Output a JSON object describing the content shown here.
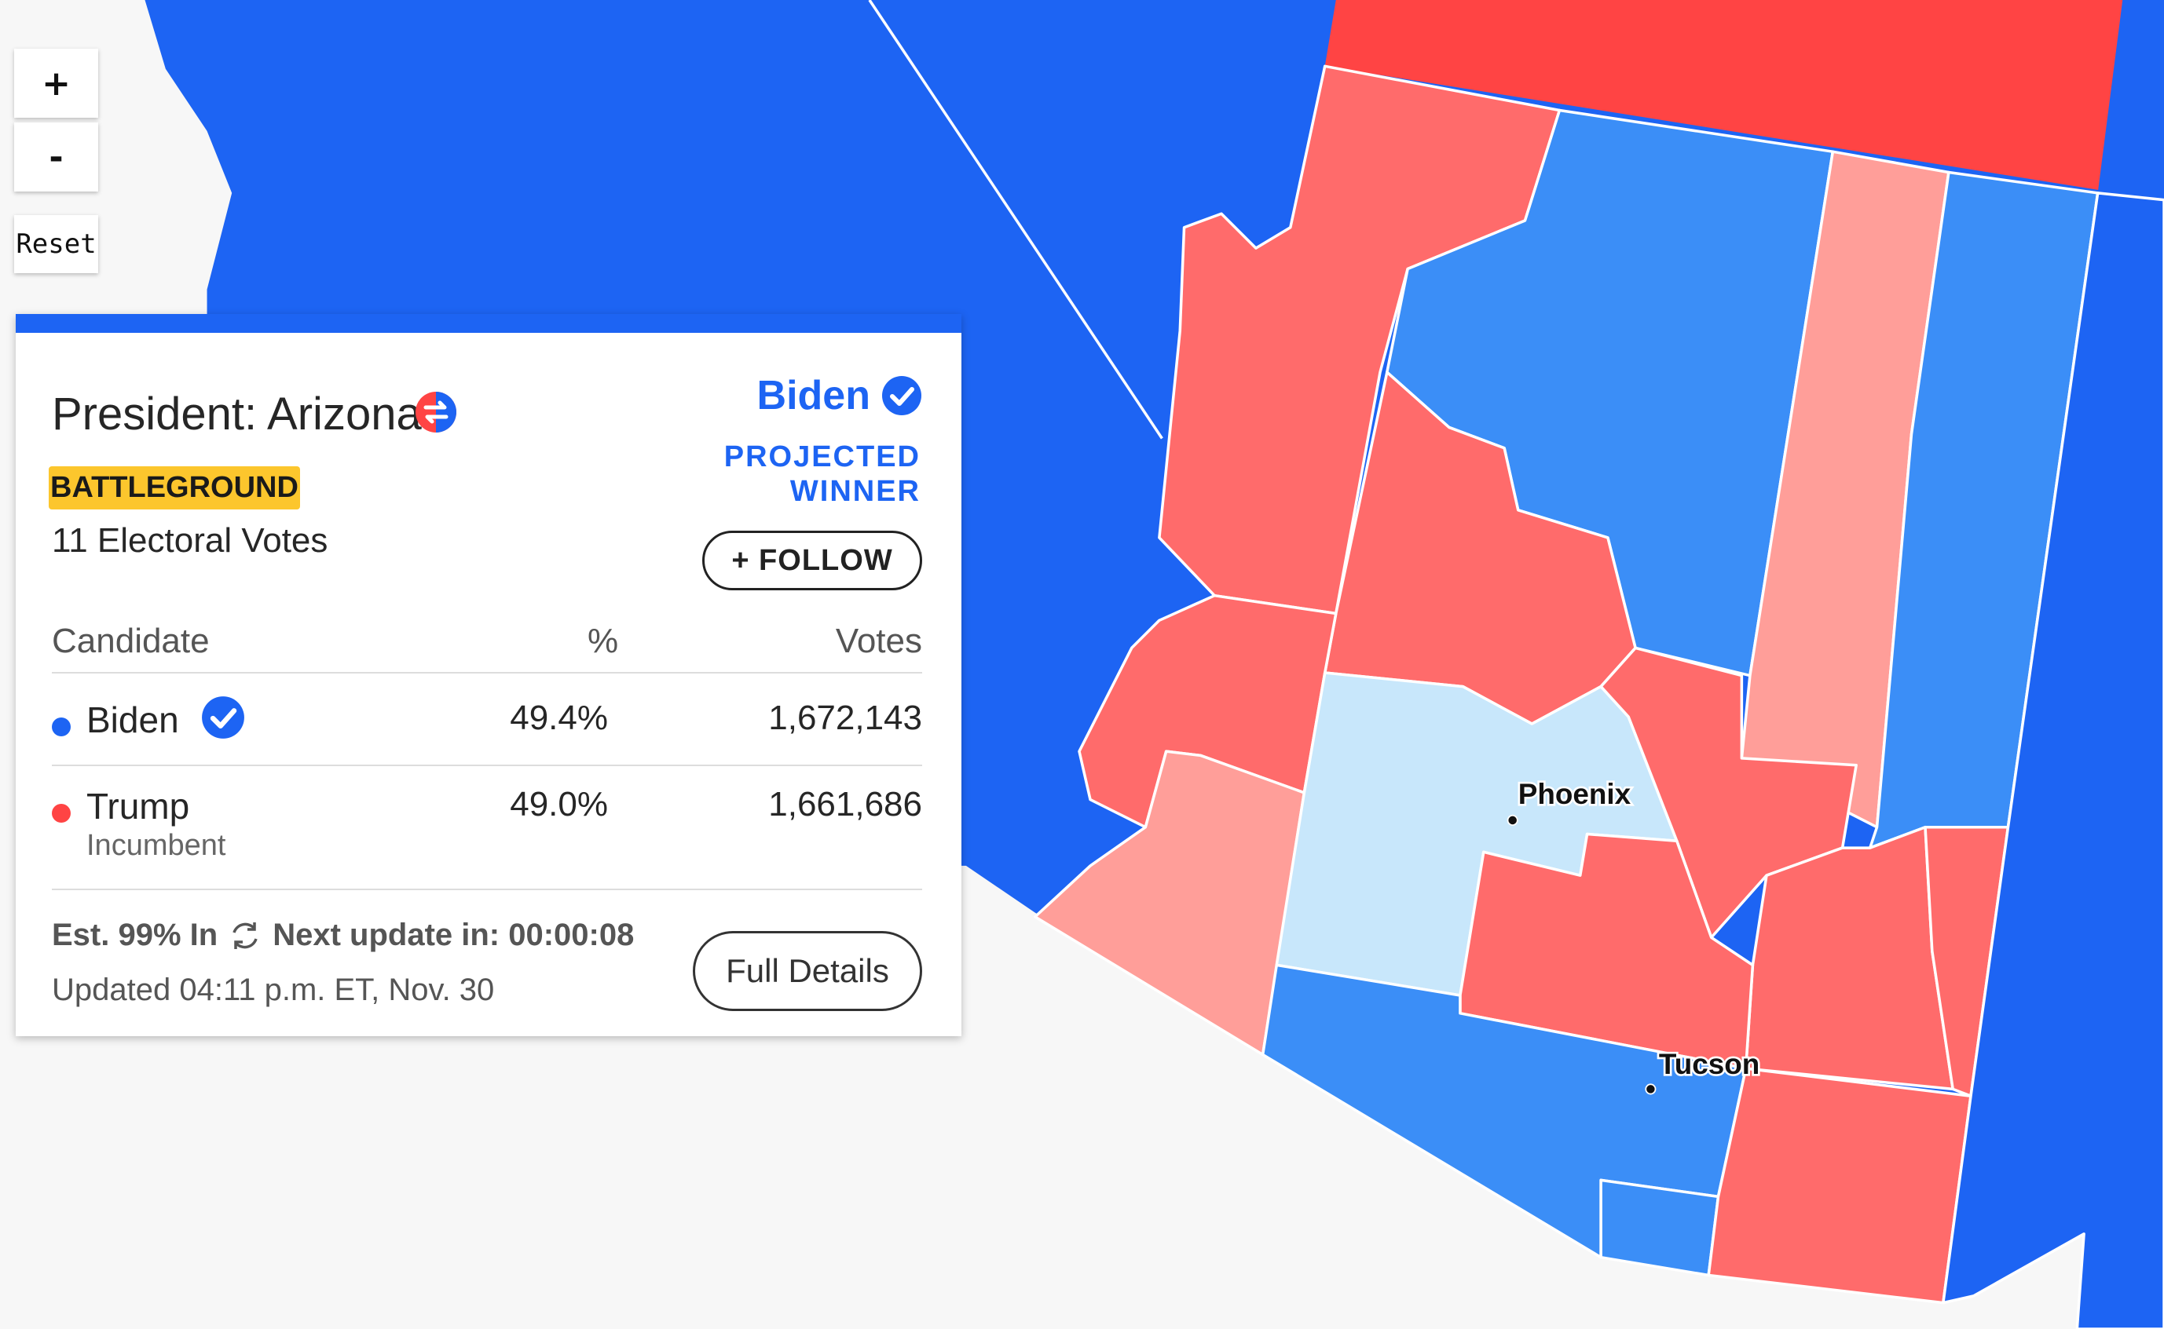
{
  "colors": {
    "dem_strong": "#1d64f3",
    "dem_medium": "#3b8ef7",
    "dem_light": "#c8e7fb",
    "rep_strong": "#ff4444",
    "rep_medium": "#ff6b6b",
    "rep_light": "#ff9e99",
    "battleground_badge": "#fcc62d",
    "background": "#f7f7f7"
  },
  "map_controls": {
    "zoom_in_label": "+",
    "zoom_out_label": "-",
    "reset_label": "Reset"
  },
  "map": {
    "cities": [
      {
        "name": "Phoenix"
      },
      {
        "name": "Tucson"
      }
    ]
  },
  "card": {
    "race_title": "President: Arizona",
    "flip_icon": "flip-arrows-icon",
    "badge": "BATTLEGROUND",
    "electoral_votes": "11 Electoral Votes",
    "winner": {
      "name": "Biden",
      "status_label": "PROJECTED WINNER",
      "check_icon": "check-circle-icon"
    },
    "follow_label": "+ FOLLOW",
    "table": {
      "headers": {
        "candidate": "Candidate",
        "percent": "%",
        "votes": "Votes"
      },
      "rows": [
        {
          "name": "Biden",
          "subtitle": "",
          "percent": "49.4%",
          "votes": "1,672,143",
          "color": "#1d64f3",
          "winner": true
        },
        {
          "name": "Trump",
          "subtitle": "Incumbent",
          "percent": "49.0%",
          "votes": "1,661,686",
          "color": "#ff4444",
          "winner": false
        }
      ]
    },
    "status": {
      "estimate": "Est. 99% In",
      "next_update": "Next update in: 00:00:08",
      "updated": "Updated 04:11 p.m. ET, Nov. 30"
    },
    "details_label": "Full Details"
  }
}
